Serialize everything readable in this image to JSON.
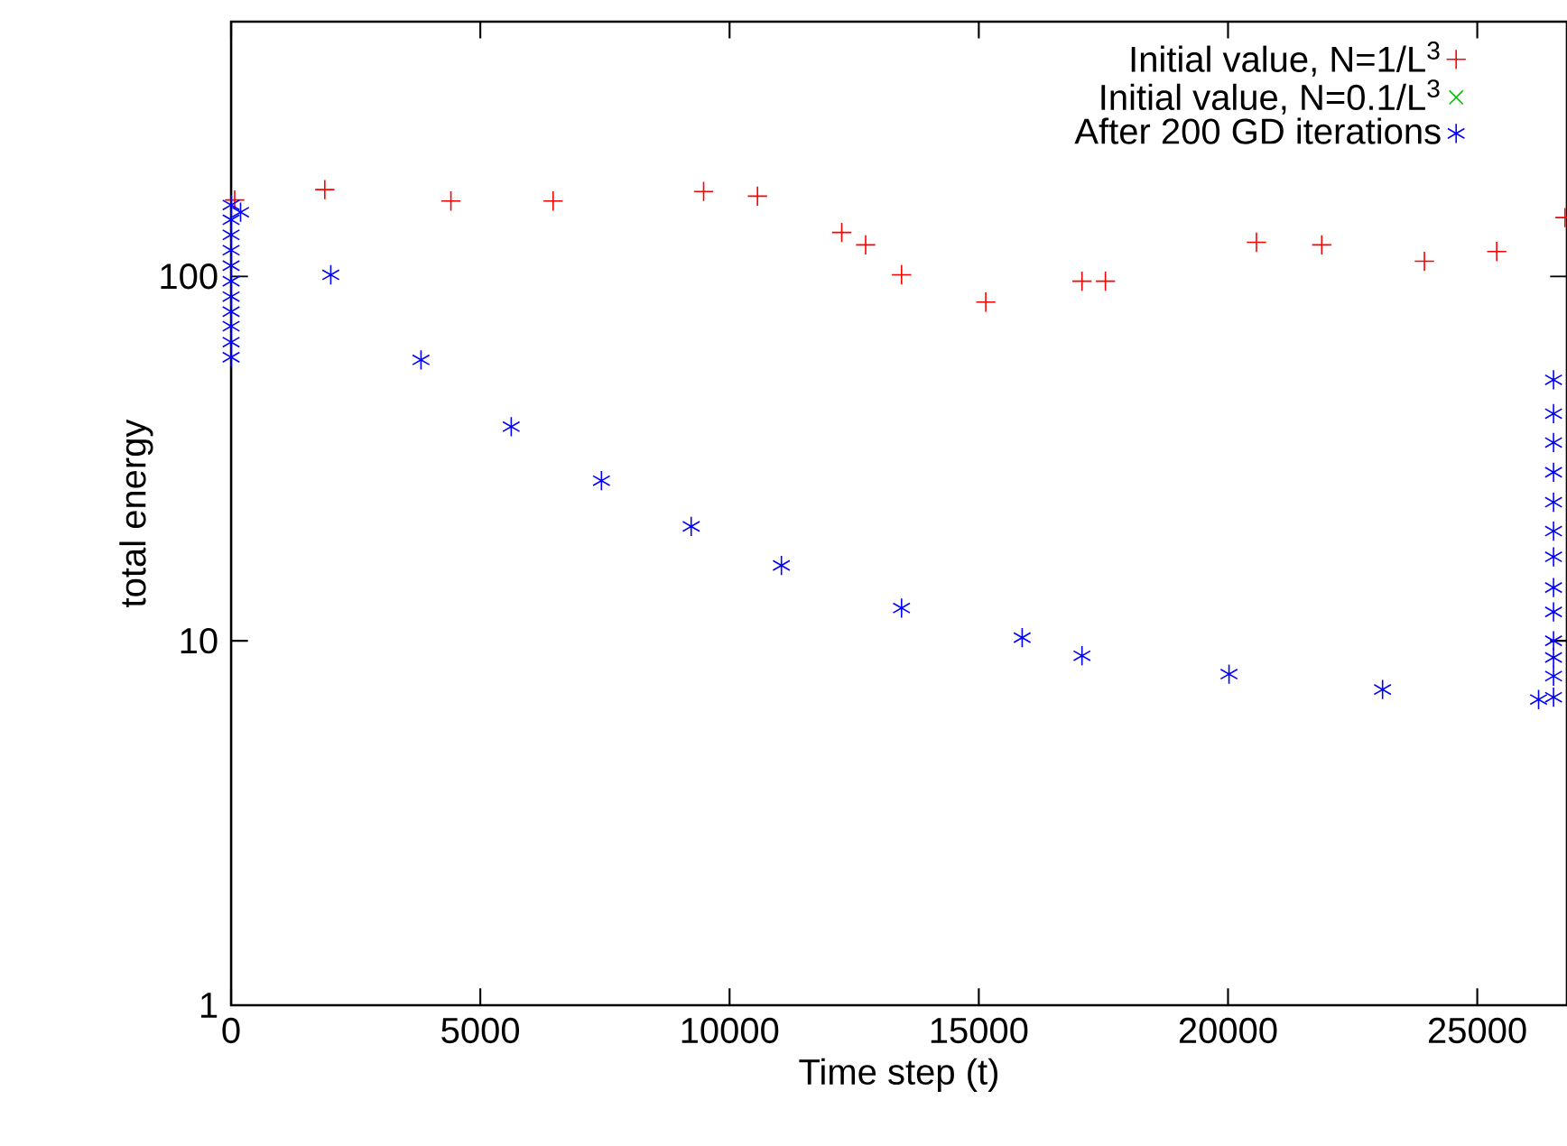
{
  "chart_data": {
    "type": "scatter",
    "xlabel": "Time step (t)",
    "ylabel": "total energy",
    "log": "y",
    "legend": "top right",
    "xlim": [
      0,
      26800
    ],
    "ylim": [
      1,
      500
    ],
    "xticks": [
      0,
      5000,
      10000,
      15000,
      20000,
      25000
    ],
    "yticks": [
      1,
      10,
      100
    ],
    "series": [
      {
        "name": "Initial value, N=1/L$^{3}$",
        "color": "#ff0000",
        "x": [
          72,
          1880,
          4410,
          6460,
          9480,
          10560,
          12250,
          12730,
          13450,
          15140,
          17070,
          17540,
          20570,
          21880,
          23940,
          25390,
          26760
        ],
        "values": [
          162,
          173,
          161,
          161,
          171,
          166,
          132,
          122,
          101,
          85,
          97,
          97,
          124,
          122,
          110,
          117,
          145
        ]
      },
      {
        "name": "Initial value, N=0.1/L$^{3}$",
        "color": "#00c000"
      },
      {
        "name": "After 200 GD iterations",
        "color": "#0000ff",
        "x": [
          0,
          0,
          0,
          0,
          0,
          0,
          0,
          0,
          0,
          0,
          0,
          190,
          2000,
          3810,
          5620,
          7430,
          9230,
          11040,
          13450,
          15870,
          17070,
          20020,
          23100,
          26230,
          26530,
          26530,
          26530,
          26530,
          26530,
          26530,
          26530,
          26530,
          26530,
          26530,
          26530,
          26530,
          26530
        ],
        "values": [
          60,
          66,
          73,
          80,
          88,
          97,
          107,
          118,
          130,
          143,
          157,
          150,
          101,
          59,
          38.7,
          27.5,
          20.6,
          16.1,
          12.3,
          10.2,
          9.1,
          8.1,
          7.35,
          6.9,
          7,
          8,
          9,
          10,
          12,
          14,
          17,
          20,
          24,
          29,
          35,
          42,
          52
        ]
      }
    ]
  }
}
